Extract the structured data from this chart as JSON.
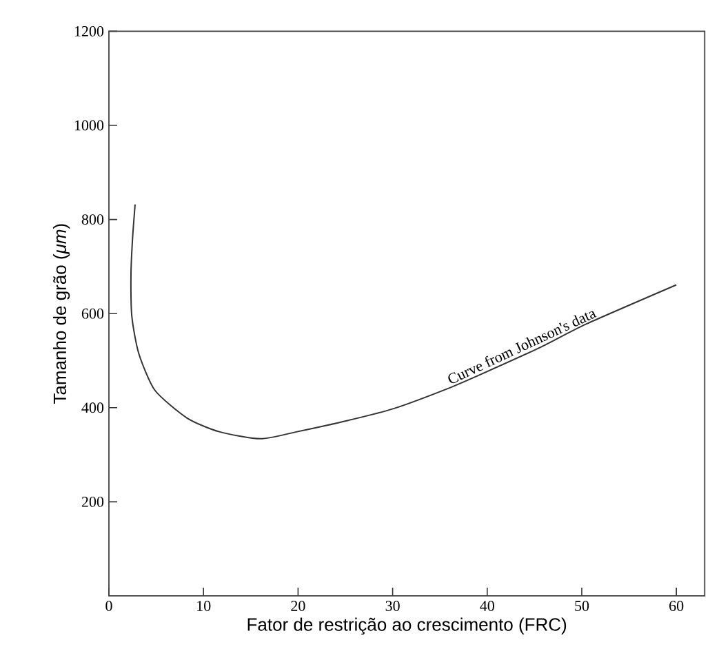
{
  "chart_data": {
    "type": "line",
    "xlabel": "Fator de restrição ao crescimento (FRC)",
    "ylabel": "Tamanho de grão (*μm*)",
    "xlim": [
      0,
      63
    ],
    "ylim": [
      0,
      1200
    ],
    "xticks": [
      0,
      10,
      20,
      30,
      40,
      50,
      60
    ],
    "yticks": [
      200,
      400,
      600,
      800,
      1000,
      1200
    ],
    "annotations": [
      {
        "text": "Curve from Johnson's data",
        "x": 44,
        "y": 515
      }
    ],
    "series": [
      {
        "color": "#333333",
        "x": [
          2.77,
          2.5,
          2.33,
          2.43,
          3.16,
          4.86,
          8.26,
          11.66,
          16.03,
          19.9,
          25.3,
          30.1,
          36.0,
          39.9,
          45.7,
          50.5,
          60
        ],
        "values": [
          832,
          760,
          681,
          593,
          515,
          437,
          378,
          349,
          334,
          349,
          373,
          398,
          442,
          476,
          529,
          578,
          661
        ]
      }
    ]
  }
}
